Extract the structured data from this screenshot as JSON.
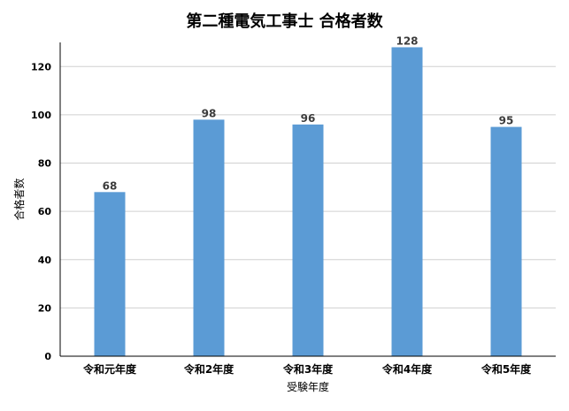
{
  "chart_data": {
    "type": "bar",
    "title": "第二種電気工事士 合格者数",
    "xlabel": "受験年度",
    "ylabel": "合格者数",
    "categories": [
      "令和元年度",
      "令和2年度",
      "令和3年度",
      "令和4年度",
      "令和5年度"
    ],
    "series": [
      {
        "values": [
          68,
          98,
          96,
          128,
          95
        ]
      }
    ],
    "ylim": [
      0,
      130
    ],
    "yticks": [
      0,
      20,
      40,
      60,
      80,
      100,
      120
    ],
    "grid": true,
    "legend": "none",
    "bar_color": "#5b9bd5"
  }
}
